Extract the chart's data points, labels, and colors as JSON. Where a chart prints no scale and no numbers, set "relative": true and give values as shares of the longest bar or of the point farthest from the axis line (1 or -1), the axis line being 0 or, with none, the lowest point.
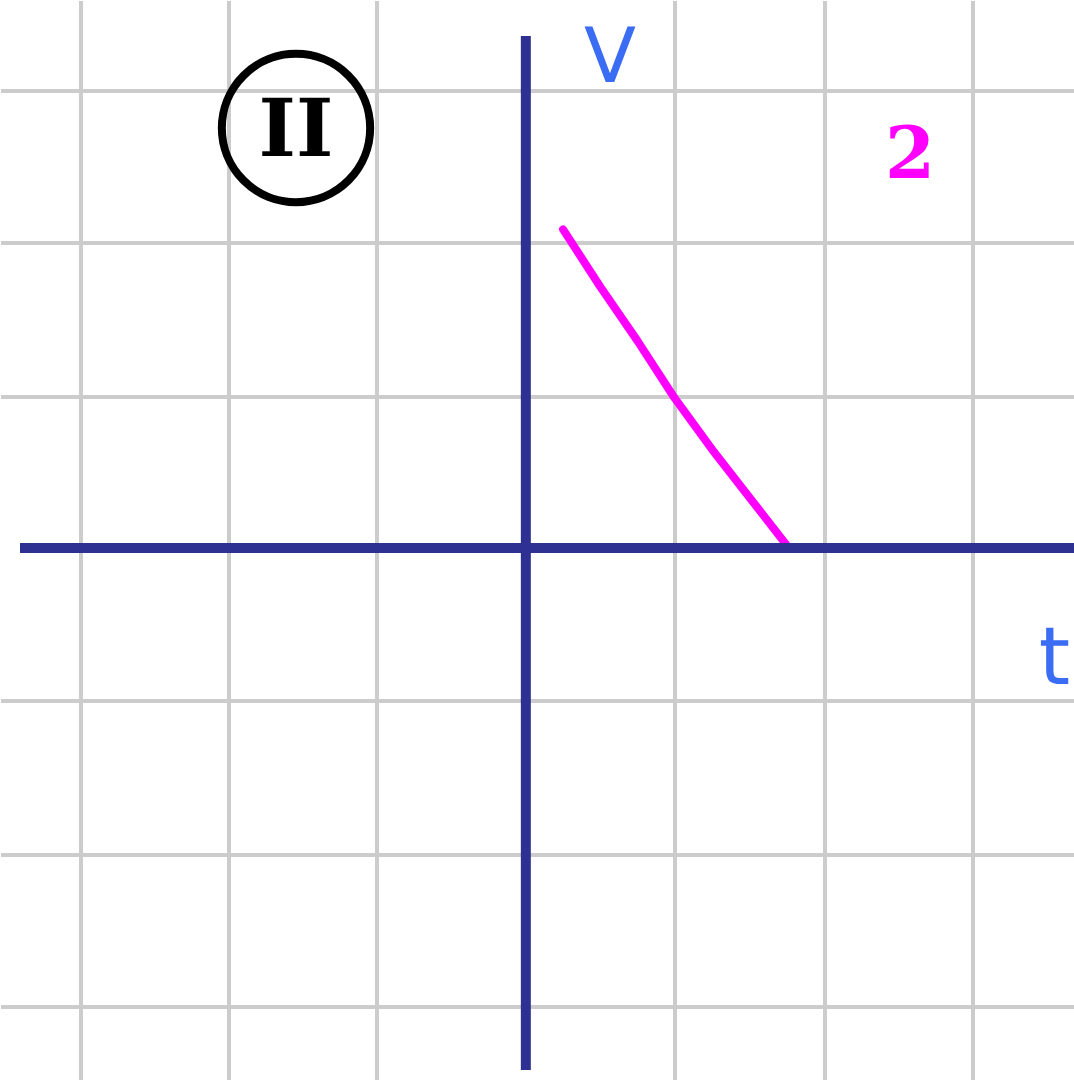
{
  "chart_data": {
    "type": "line",
    "relative": true,
    "title": null,
    "categories": [
      null,
      null,
      null,
      null,
      null,
      null,
      null,
      null,
      null,
      null,
      null,
      null,
      null,
      null,
      null,
      null,
      null,
      null,
      null,
      null,
      null,
      null,
      null,
      null,
      null,
      null,
      null,
      null,
      null
    ],
    "series": [
      {
        "color": "#ff00ff",
        "values": [
          null,
          null,
          null,
          null,
          null,
          null,
          null,
          null,
          null,
          null,
          null,
          null,
          null,
          null,
          null,
          1,
          0.82,
          0.65,
          0.47,
          0.31,
          0.16,
          0.01,
          null,
          null,
          null,
          null,
          null,
          null,
          null
        ]
      }
    ],
    "xlabel": "t",
    "ylabel": "V",
    "annotations": [
      "II",
      "2"
    ],
    "grid": true,
    "tick_labels": false
  }
}
